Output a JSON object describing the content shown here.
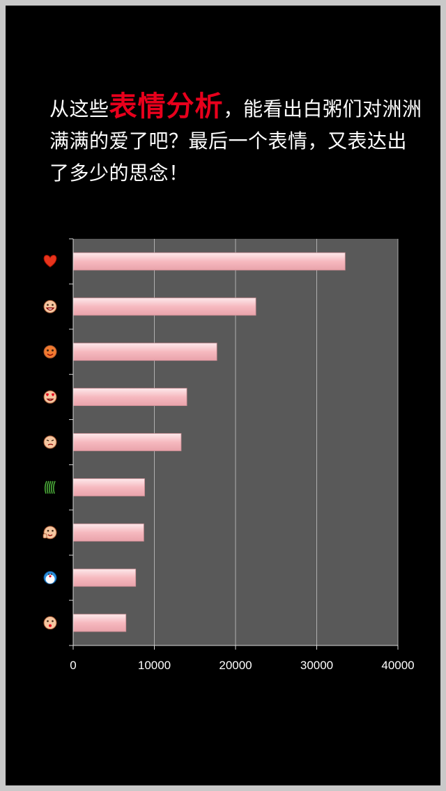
{
  "intro": {
    "before": "从这些",
    "highlight": "表情分析",
    "after": "，能看出白粥们对洲洲满满的爱了吧？最后一个表情，又表达出了多少的思念！"
  },
  "colors": {
    "background": "#000000",
    "plot_area": "#595959",
    "bar_fill": "#f6b9bf",
    "highlight_text": "#e8001c",
    "gridline": "#b0b0b0"
  },
  "chart_data": {
    "type": "bar",
    "orientation": "horizontal",
    "categories": [
      "heart-emoji-icon",
      "grinning-face-emoji-icon",
      "red-round-face-emoji-icon",
      "heart-eyes-emoji-icon",
      "sly-face-emoji-icon",
      "grass-emoji-icon",
      "thumbs-up-face-emoji-icon",
      "doraemon-emoji-icon",
      "blowing-face-emoji-icon"
    ],
    "values": [
      33500,
      22500,
      17700,
      14000,
      13300,
      8800,
      8700,
      7700,
      6500
    ],
    "xlim": [
      0,
      40000
    ],
    "xticks": [
      "0",
      "10000",
      "20000",
      "30000",
      "40000"
    ],
    "grid": true,
    "legend": "none"
  }
}
